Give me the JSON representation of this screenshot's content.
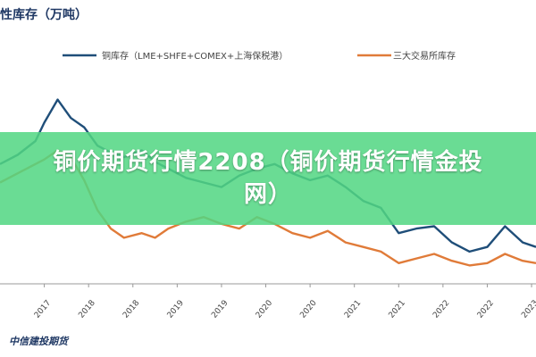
{
  "page_title": "性库存（万吨）",
  "banner_text": "铜价期货行情2208（铜价期货行情金投网）",
  "source": "中信建投期货",
  "colors": {
    "copper": "#1f4e79",
    "exchange": "#e07b39",
    "title": "#1f3864",
    "banner": "#52d682"
  },
  "chart_data": {
    "type": "line",
    "title": "性库存（万吨）",
    "xlabel": "",
    "ylabel": "",
    "ylim": [
      0,
      100
    ],
    "x_tick_labels": [
      "2017",
      "2018",
      "2018",
      "2019",
      "2019",
      "2020",
      "2020",
      "2021",
      "2021",
      "2022",
      "2022",
      "2023"
    ],
    "x_start_index": -1.0,
    "x_end_index": 11.1,
    "series": [
      {
        "name": "铜库存（LME+SHFE+COMEX+上海保税港）",
        "color": "#1f4e79",
        "x": [
          -1.0,
          -0.6,
          -0.2,
          0.0,
          0.3,
          0.6,
          0.9,
          1.2,
          1.5,
          1.8,
          2.2,
          2.5,
          2.8,
          3.2,
          3.6,
          4.0,
          4.4,
          4.8,
          5.2,
          5.6,
          6.0,
          6.4,
          6.8,
          7.2,
          7.6,
          8.0,
          8.4,
          8.8,
          9.2,
          9.6,
          10.0,
          10.4,
          10.8,
          11.1
        ],
        "values": [
          52,
          56,
          62,
          70,
          80,
          72,
          68,
          60,
          57,
          55,
          58,
          53,
          50,
          46,
          44,
          42,
          47,
          50,
          52,
          48,
          45,
          47,
          42,
          36,
          33,
          22,
          24,
          25,
          18,
          14,
          16,
          25,
          18,
          16
        ]
      },
      {
        "name": "三大交易所库存",
        "color": "#e07b39",
        "x": [
          -1.0,
          -0.6,
          -0.2,
          0.0,
          0.3,
          0.6,
          0.9,
          1.2,
          1.5,
          1.8,
          2.2,
          2.5,
          2.8,
          3.2,
          3.6,
          4.0,
          4.4,
          4.8,
          5.2,
          5.6,
          6.0,
          6.4,
          6.8,
          7.2,
          7.6,
          8.0,
          8.4,
          8.8,
          9.2,
          9.6,
          10.0,
          10.4,
          10.8,
          11.1
        ],
        "values": [
          44,
          48,
          52,
          54,
          58,
          55,
          45,
          32,
          24,
          20,
          22,
          20,
          24,
          27,
          29,
          26,
          24,
          29,
          26,
          22,
          20,
          23,
          18,
          16,
          14,
          9,
          11,
          13,
          10,
          8,
          9,
          13,
          10,
          9
        ]
      }
    ],
    "legend_position": "top",
    "grid": false
  }
}
